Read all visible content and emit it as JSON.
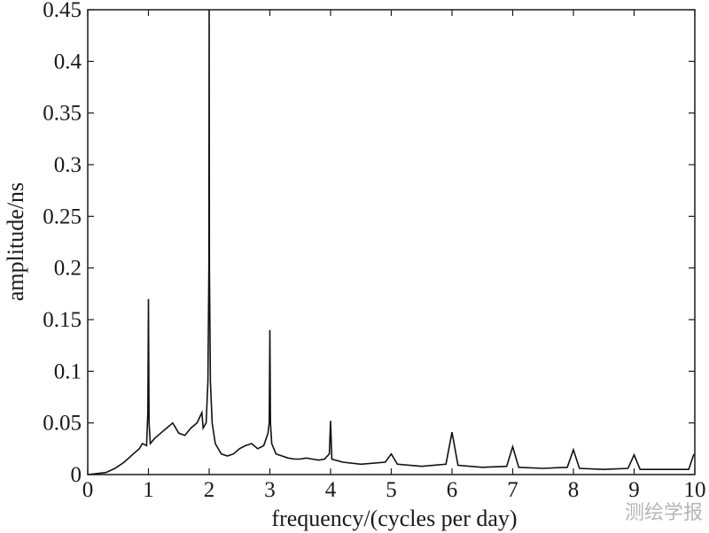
{
  "watermark": "测绘学报",
  "chart_data": {
    "type": "line",
    "title": "",
    "xlabel": "frequency/(cycles per day)",
    "ylabel": "amplitude/ns",
    "xlim": [
      0,
      10
    ],
    "ylim": [
      0,
      0.45
    ],
    "xticks": [
      0,
      1,
      2,
      3,
      4,
      5,
      6,
      7,
      8,
      9,
      10
    ],
    "xtick_labels": [
      "0",
      "1",
      "2",
      "3",
      "4",
      "5",
      "6",
      "7",
      "8",
      "9",
      "10"
    ],
    "yticks": [
      0,
      0.05,
      0.1,
      0.15,
      0.2,
      0.25,
      0.3,
      0.35,
      0.4,
      0.45
    ],
    "ytick_labels": [
      "0",
      "0.05",
      "0.1",
      "0.15",
      "0.2",
      "0.25",
      "0.3",
      "0.35",
      "0.4",
      "0.45"
    ],
    "grid": false,
    "line_color": "#111111",
    "series": [
      {
        "x": [
          0,
          0.3,
          0.45,
          0.6,
          0.75,
          0.85,
          0.9,
          0.97,
          0.99,
          1.0,
          1.01,
          1.03,
          1.1,
          1.2,
          1.3,
          1.4,
          1.5,
          1.6,
          1.7,
          1.8,
          1.88,
          1.9,
          1.95,
          1.98,
          1.995,
          2.0,
          2.005,
          2.02,
          2.05,
          2.1,
          2.2,
          2.3,
          2.4,
          2.5,
          2.6,
          2.7,
          2.8,
          2.9,
          2.97,
          2.99,
          3.0,
          3.01,
          3.03,
          3.1,
          3.2,
          3.3,
          3.4,
          3.5,
          3.6,
          3.7,
          3.8,
          3.9,
          3.98,
          4.0,
          4.02,
          4.2,
          4.5,
          4.9,
          5.0,
          5.1,
          5.5,
          5.9,
          6.0,
          6.1,
          6.5,
          6.9,
          7.0,
          7.1,
          7.5,
          7.9,
          8.0,
          8.1,
          8.5,
          8.9,
          9.0,
          9.1,
          9.5,
          9.9,
          9.98,
          10.0
        ],
        "y": [
          0.0,
          0.002,
          0.006,
          0.012,
          0.02,
          0.025,
          0.03,
          0.028,
          0.06,
          0.17,
          0.05,
          0.03,
          0.035,
          0.04,
          0.045,
          0.05,
          0.04,
          0.038,
          0.045,
          0.05,
          0.06,
          0.045,
          0.05,
          0.09,
          0.2,
          0.45,
          0.2,
          0.09,
          0.05,
          0.03,
          0.02,
          0.018,
          0.02,
          0.025,
          0.028,
          0.03,
          0.025,
          0.028,
          0.04,
          0.05,
          0.14,
          0.05,
          0.03,
          0.02,
          0.018,
          0.016,
          0.015,
          0.015,
          0.016,
          0.015,
          0.014,
          0.015,
          0.02,
          0.052,
          0.015,
          0.012,
          0.01,
          0.012,
          0.02,
          0.01,
          0.008,
          0.01,
          0.041,
          0.009,
          0.007,
          0.008,
          0.027,
          0.007,
          0.006,
          0.007,
          0.024,
          0.006,
          0.005,
          0.006,
          0.019,
          0.005,
          0.005,
          0.005,
          0.019,
          0.02
        ]
      }
    ]
  }
}
